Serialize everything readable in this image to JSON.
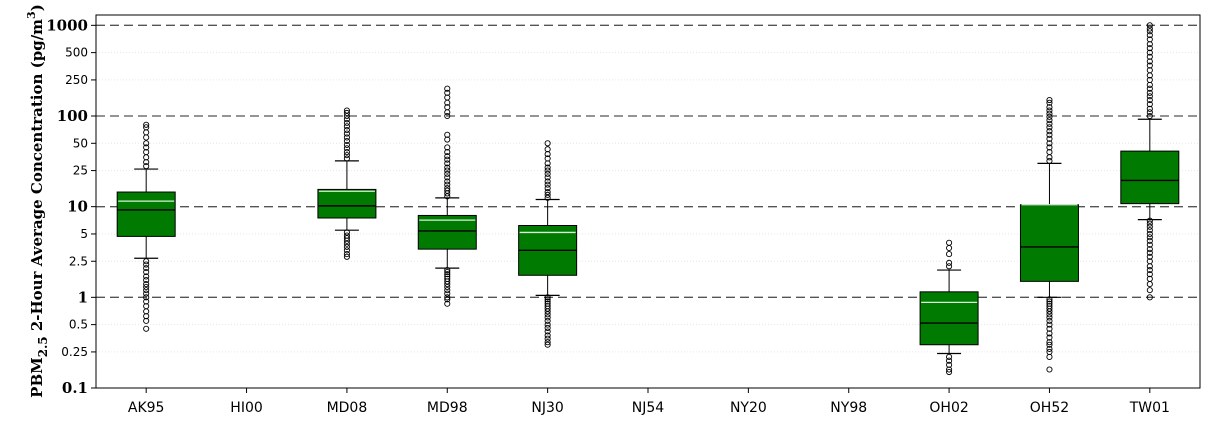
{
  "chart_data": {
    "type": "box",
    "title": "",
    "xlabel": "",
    "ylabel_parts": {
      "pre": "PBM",
      "sub": "2.5",
      "mid": " 2-Hour Average Concentration (pg/m",
      "sup": "3",
      "post": ")"
    },
    "yscale": "log",
    "ylim": [
      0.1,
      1300
    ],
    "yticks": [
      {
        "value": 0.1,
        "label": "0.1",
        "major": true
      },
      {
        "value": 0.25,
        "label": "0.25",
        "major": false
      },
      {
        "value": 0.5,
        "label": "0.5",
        "major": false
      },
      {
        "value": 1,
        "label": "1",
        "major": true
      },
      {
        "value": 2.5,
        "label": "2.5",
        "major": false
      },
      {
        "value": 5,
        "label": "5",
        "major": false
      },
      {
        "value": 10,
        "label": "10",
        "major": true
      },
      {
        "value": 25,
        "label": "25",
        "major": false
      },
      {
        "value": 50,
        "label": "50",
        "major": false
      },
      {
        "value": 100,
        "label": "100",
        "major": true
      },
      {
        "value": 250,
        "label": "250",
        "major": false
      },
      {
        "value": 500,
        "label": "500",
        "major": false
      },
      {
        "value": 1000,
        "label": "1000",
        "major": true
      }
    ],
    "reference_lines": [
      1,
      10,
      100,
      1000
    ],
    "grid": "dotted horizontal at minor ticks",
    "box_color": "#007a00",
    "mean_line_color": "#d9f2d9",
    "categories": [
      "AK95",
      "HI00",
      "MD08",
      "MD98",
      "NJ30",
      "NJ54",
      "NY20",
      "NY98",
      "OH02",
      "OH52",
      "TW01"
    ],
    "boxes": [
      {
        "category": "AK95",
        "whisker_low": 2.7,
        "q1": 4.7,
        "median": 9.2,
        "mean": 11.5,
        "q3": 14.5,
        "whisker_high": 26,
        "outliers_high": [
          28,
          31,
          35,
          40,
          45,
          50,
          58,
          66,
          75,
          80
        ],
        "outliers_low": [
          2.5,
          2.3,
          2.1,
          1.9,
          1.7,
          1.55,
          1.4,
          1.3,
          1.2,
          1.1,
          1.0,
          0.9,
          0.8,
          0.7,
          0.62,
          0.55,
          0.45
        ]
      },
      {
        "category": "HI00"
      },
      {
        "category": "MD08",
        "whisker_low": 5.5,
        "q1": 7.5,
        "median": 10.2,
        "mean": 14.8,
        "q3": 15.5,
        "whisker_high": 32,
        "outliers_high": [
          34,
          37,
          40,
          44,
          48,
          53,
          58,
          64,
          70,
          77,
          84,
          92,
          100,
          108,
          115
        ],
        "outliers_low": [
          5.2,
          4.8,
          4.5,
          4.2,
          3.9,
          3.6,
          3.3,
          3.0,
          2.8
        ]
      },
      {
        "category": "MD98",
        "whisker_low": 2.1,
        "q1": 3.4,
        "median": 5.4,
        "mean": 7.1,
        "q3": 8.0,
        "whisker_high": 12.5,
        "outliers_high": [
          13,
          14,
          15,
          16,
          17.5,
          19,
          21,
          23,
          25,
          27,
          30,
          33,
          36,
          40,
          45,
          55,
          62,
          100,
          110,
          125,
          140,
          160,
          180,
          200
        ],
        "outliers_low": [
          2.0,
          1.9,
          1.8,
          1.7,
          1.6,
          1.5,
          1.4,
          1.3,
          1.2,
          1.1,
          1.0,
          0.95,
          0.85
        ]
      },
      {
        "category": "NJ30",
        "whisker_low": 1.05,
        "q1": 1.75,
        "median": 3.3,
        "mean": 5.2,
        "q3": 6.2,
        "whisker_high": 12,
        "outliers_high": [
          12.5,
          13.5,
          14.5,
          16,
          17.5,
          19,
          21,
          23,
          25,
          27,
          30,
          34,
          38,
          43,
          50
        ],
        "outliers_low": [
          1.0,
          0.95,
          0.9,
          0.85,
          0.8,
          0.75,
          0.7,
          0.65,
          0.6,
          0.55,
          0.5,
          0.46,
          0.42,
          0.38,
          0.35,
          0.32,
          0.3
        ]
      },
      {
        "category": "NJ54"
      },
      {
        "category": "NY20"
      },
      {
        "category": "NY98"
      },
      {
        "category": "OH02",
        "whisker_low": 0.24,
        "q1": 0.3,
        "median": 0.52,
        "mean": 0.88,
        "q3": 1.15,
        "whisker_high": 2.0,
        "outliers_high": [
          2.2,
          2.4,
          3.0,
          3.5,
          4.0
        ],
        "outliers_low": [
          0.22,
          0.2,
          0.18,
          0.16,
          0.15
        ]
      },
      {
        "category": "OH52",
        "whisker_low": 1.0,
        "q1": 1.5,
        "median": 3.6,
        "mean": 10.5,
        "q3": 10.5,
        "whisker_high": 30,
        "outliers_high": [
          32,
          35,
          40,
          45,
          50,
          56,
          62,
          68,
          75,
          82,
          90,
          98,
          106,
          115,
          125,
          140,
          150
        ],
        "outliers_low": [
          0.95,
          0.9,
          0.85,
          0.8,
          0.75,
          0.7,
          0.65,
          0.6,
          0.55,
          0.5,
          0.45,
          0.4,
          0.36,
          0.32,
          0.3,
          0.27,
          0.25,
          0.22,
          0.16
        ]
      },
      {
        "category": "TW01",
        "whisker_low": 7.2,
        "q1": 10.8,
        "median": 19.5,
        "mean": 19.5,
        "q3": 41,
        "whisker_high": 92,
        "outliers_high": [
          100,
          110,
          120,
          135,
          150,
          165,
          180,
          200,
          220,
          250,
          280,
          320,
          360,
          400,
          450,
          500,
          560,
          620,
          700,
          780,
          860,
          920,
          1000
        ],
        "outliers_low": [
          7.0,
          6.5,
          6.0,
          5.5,
          5.0,
          4.6,
          4.2,
          3.8,
          3.4,
          3.1,
          2.8,
          2.5,
          2.2,
          2.0,
          1.8,
          1.6,
          1.4,
          1.2,
          1.0
        ]
      }
    ]
  }
}
